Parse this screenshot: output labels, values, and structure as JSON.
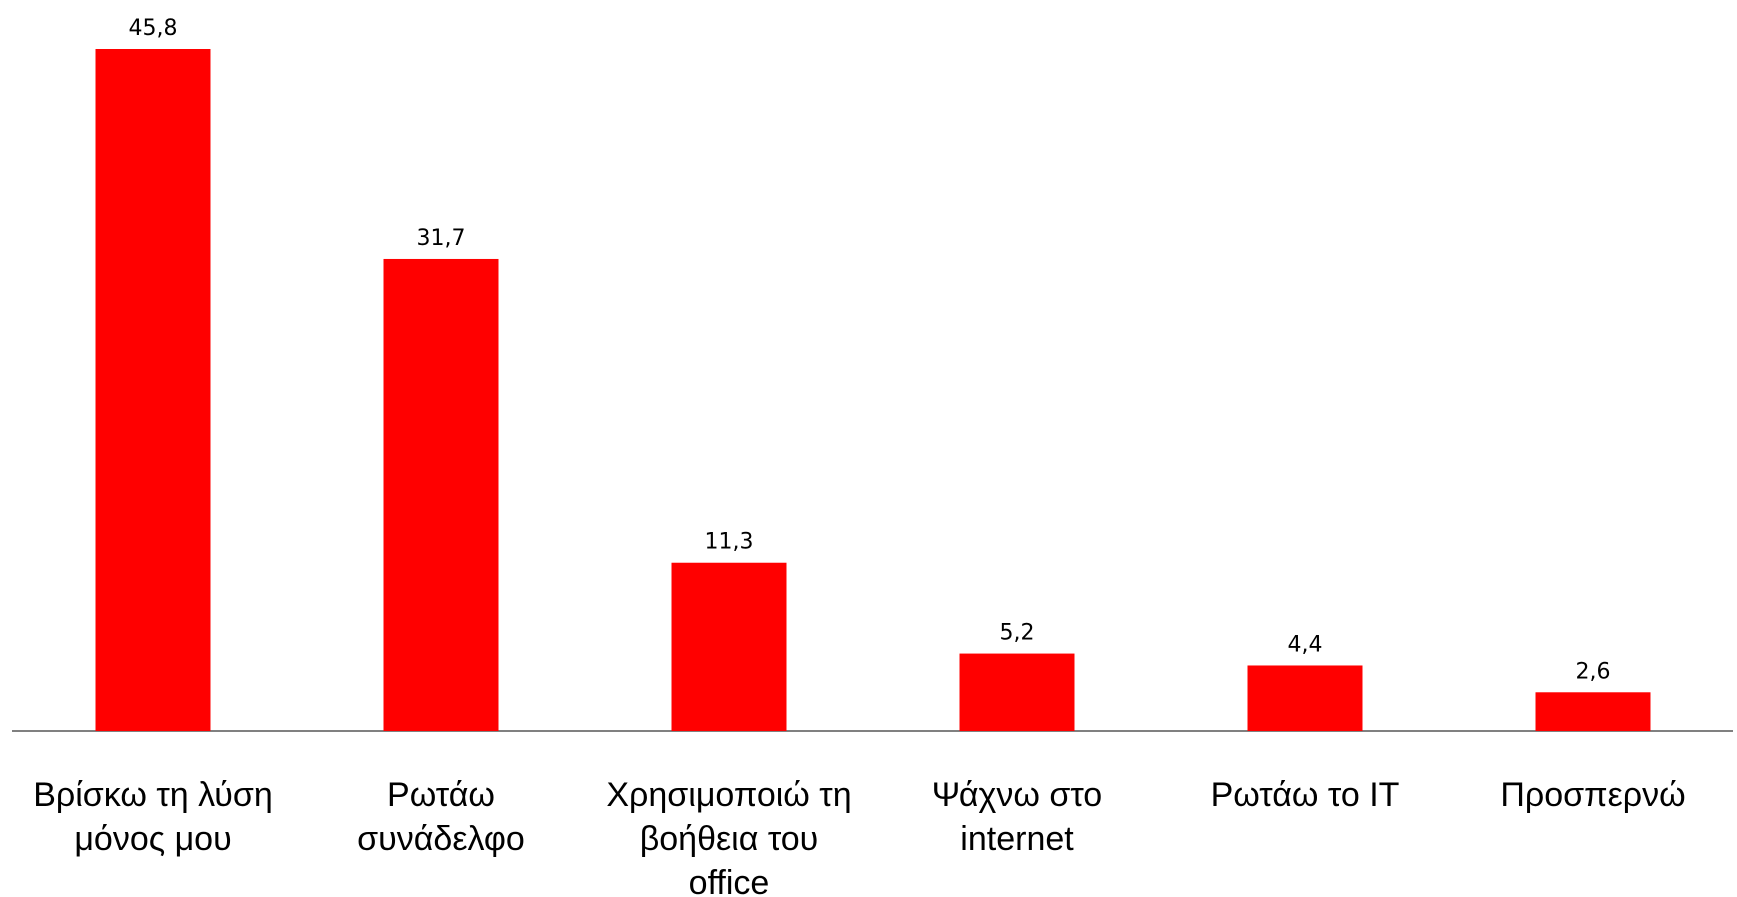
{
  "chart_data": {
    "type": "bar",
    "categories": [
      [
        "Βρίσκω τη λύση",
        "μόνος μου"
      ],
      [
        "Ρωτάω",
        "συνάδελφο"
      ],
      [
        "Χρησιμοποιώ τη",
        "βοήθεια του",
        "office"
      ],
      [
        "Ψάχνω στο",
        "internet"
      ],
      [
        "Ρωτάω το IT"
      ],
      [
        "Προσπερνώ"
      ]
    ],
    "values": [
      45.8,
      31.7,
      11.3,
      5.2,
      4.4,
      2.6
    ],
    "value_labels": [
      "45,8",
      "31,7",
      "11,3",
      "5,2",
      "4,4",
      "2,6"
    ],
    "ylim": [
      0,
      45.8
    ],
    "grid": false,
    "legend": "none",
    "bar_color": "#ff0000",
    "axis_color": "#808080"
  }
}
